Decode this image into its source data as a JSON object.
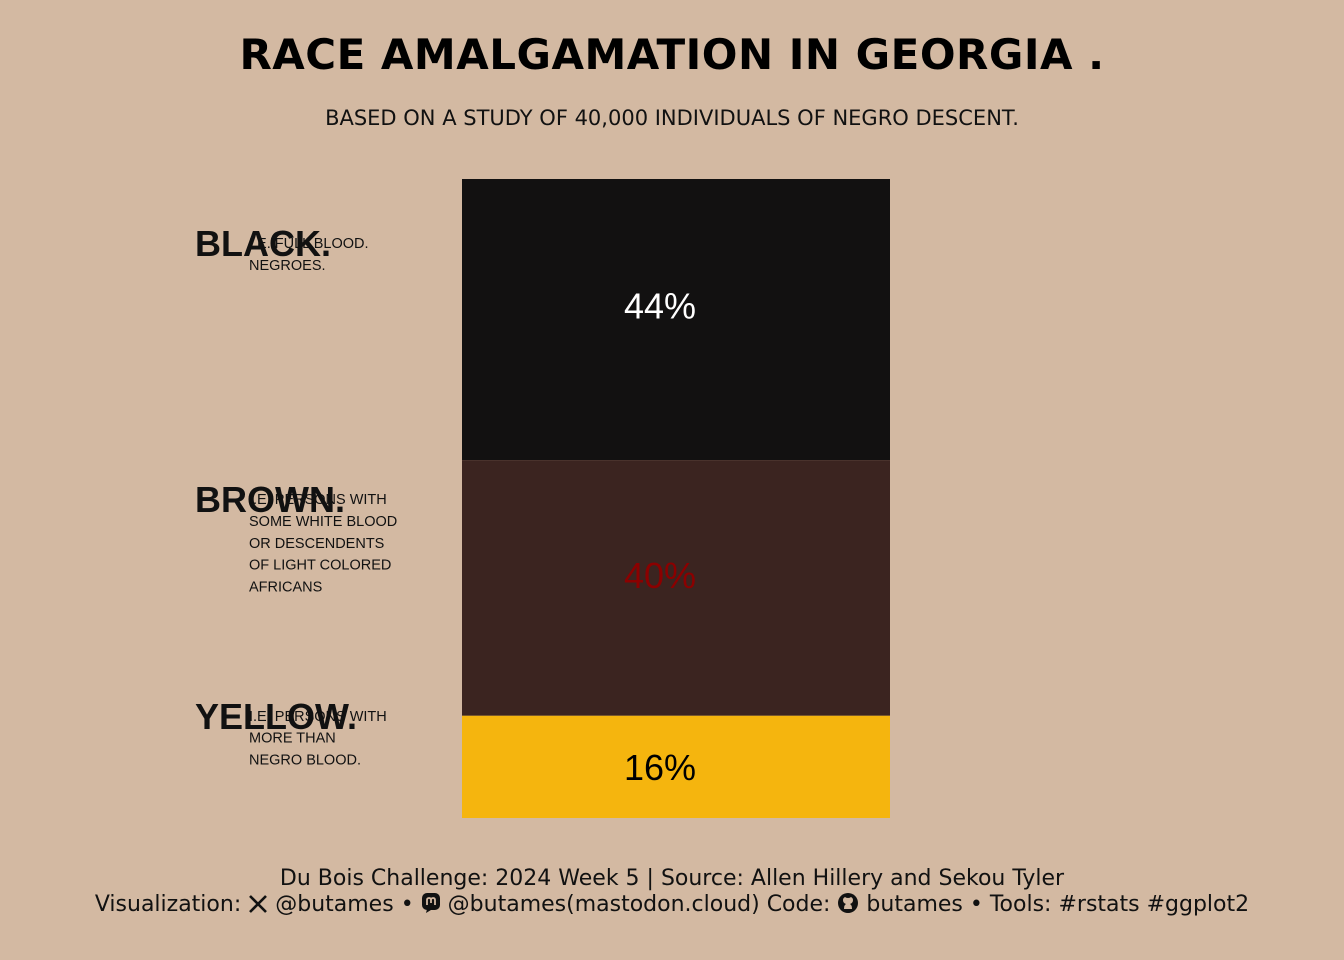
{
  "title": "RACE AMALGAMATION IN GEORGIA .",
  "subtitle": "BASED ON A STUDY OF 40,000 INDIVIDUALS OF NEGRO DESCENT.",
  "chart_data": {
    "type": "bar",
    "stacked": true,
    "orientation": "vertical",
    "categories": [
      "BLACK.",
      "BROWN.",
      "YELLOW."
    ],
    "values": [
      44,
      40,
      16
    ],
    "value_labels": [
      "44%",
      "40%",
      "16%"
    ],
    "descriptions": [
      [
        "I.E. FULL BLOOD.",
        "NEGROES."
      ],
      [
        "I.E. PERSONS WITH",
        "SOME WHITE BLOOD",
        "OR DESCENDENTS",
        "OF LIGHT COLORED",
        "AFRICANS"
      ],
      [
        "I.E. PERSONS WITH",
        "MORE THAN",
        "NEGRO BLOOD."
      ]
    ],
    "colors": [
      "#121111",
      "#3b2420",
      "#f5b50e"
    ],
    "label_colors": [
      "#ffffff",
      "#8b0000",
      "#000000"
    ],
    "unit": "%",
    "total": 100
  },
  "caption": {
    "line1": "Du Bois Challenge: 2024 Week 5 | Source: Allen Hillery and Sekou Tyler",
    "viz_label": "Visualization:",
    "x_handle": "@butames",
    "sep1": "•",
    "mastodon_handle": "@butames(mastodon.cloud)",
    "code_label": "Code:",
    "github_handle": "butames",
    "sep2": "•",
    "tools": "Tools: #rstats #ggplot2"
  },
  "icons": [
    "x-logo-icon",
    "mastodon-icon",
    "github-icon"
  ]
}
